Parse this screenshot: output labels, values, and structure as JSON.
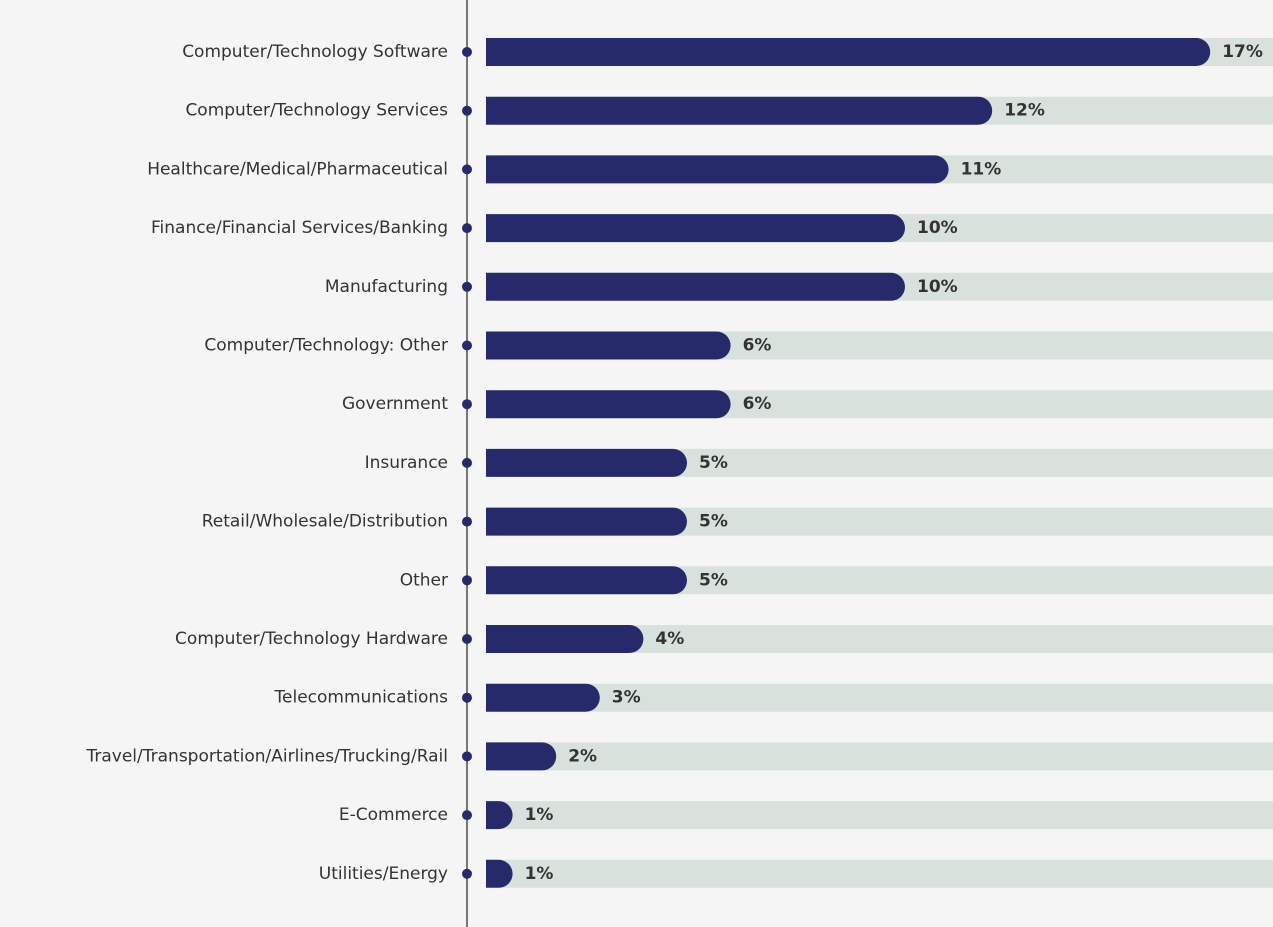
{
  "chart_data": {
    "type": "bar",
    "orientation": "horizontal",
    "categories": [
      "Computer/Technology Software",
      "Computer/Technology Services",
      "Healthcare/Medical/Pharmaceutical",
      "Finance/Financial Services/Banking",
      "Manufacturing",
      "Computer/Technology: Other",
      "Government",
      "Insurance",
      "Retail/Wholesale/Distribution",
      "Other",
      "Computer/Technology Hardware",
      "Telecommunications",
      "Travel/Transportation/Airlines/Trucking/Rail",
      "E-Commerce",
      "Utilities/Energy"
    ],
    "values": [
      17,
      12,
      11,
      10,
      10,
      6,
      6,
      5,
      5,
      5,
      4,
      3,
      2,
      1,
      1
    ],
    "value_labels": [
      "17%",
      "12%",
      "11%",
      "10%",
      "10%",
      "6%",
      "6%",
      "5%",
      "5%",
      "5%",
      "4%",
      "3%",
      "2%",
      "1%",
      "1%"
    ],
    "color": "#262a6b",
    "track_color": "#d9e1dd"
  }
}
